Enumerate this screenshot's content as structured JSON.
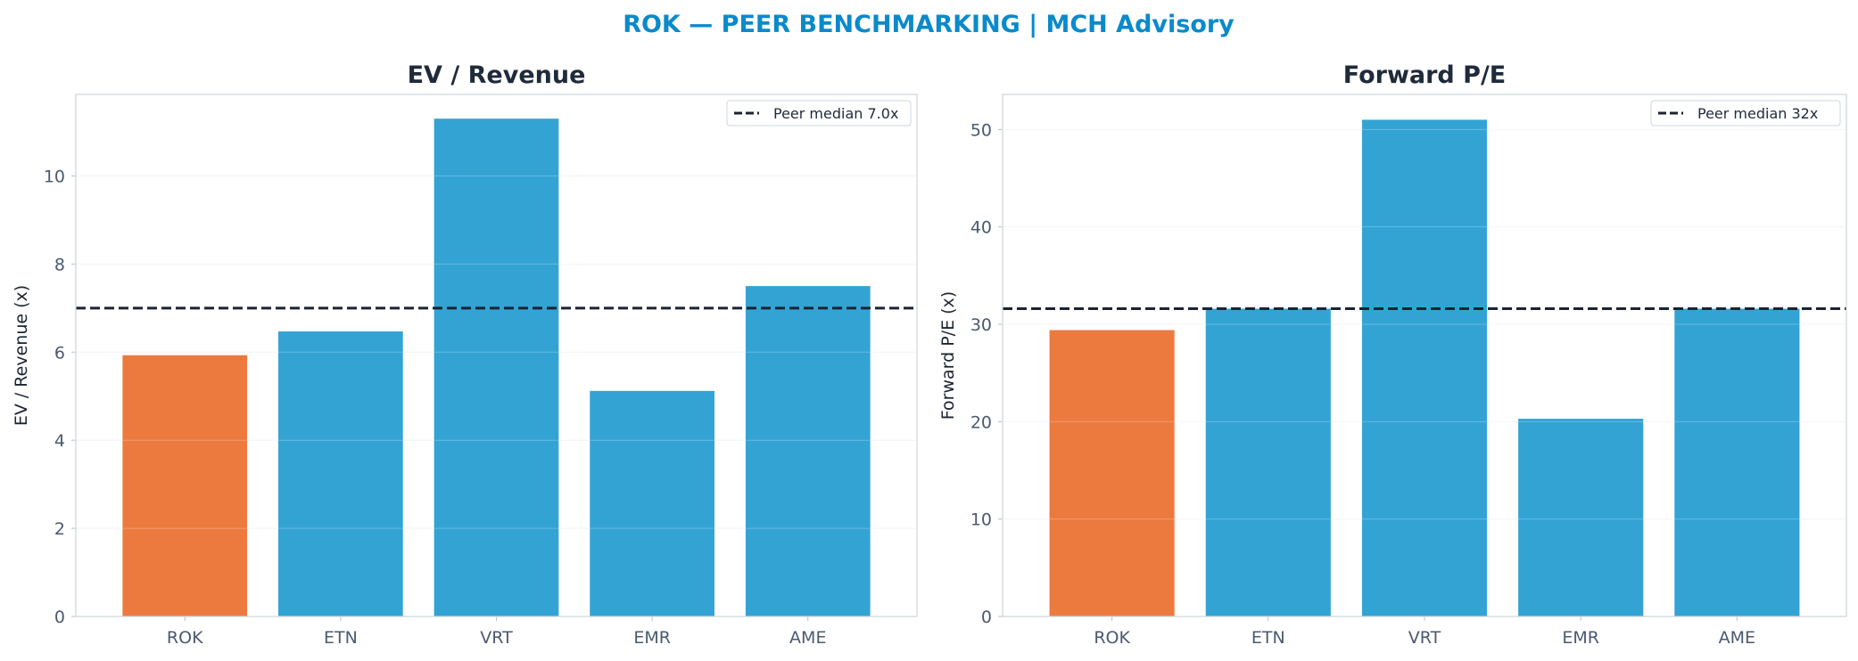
{
  "suptitle": "ROK — PEER BENCHMARKING | MCH Advisory",
  "colors": {
    "highlight": "#ec7a3f",
    "peer": "#33a3d4",
    "median_line": "#1b2333",
    "title": "#0a8acb"
  },
  "chart_data": [
    {
      "type": "bar",
      "title": "EV / Revenue",
      "xlabel": "",
      "ylabel": "EV / Revenue (x)",
      "categories": [
        "ROK",
        "ETN",
        "VRT",
        "EMR",
        "AME"
      ],
      "values": [
        5.93,
        6.47,
        11.3,
        5.12,
        7.5
      ],
      "bar_colors": [
        "highlight",
        "peer",
        "peer",
        "peer",
        "peer"
      ],
      "ylim": [
        0,
        11.85
      ],
      "yticks": [
        0,
        2,
        4,
        6,
        8,
        10
      ],
      "grid": true,
      "reference_line": {
        "value": 7.0,
        "style": "dashed",
        "label": "Peer median 7.0x"
      },
      "legend_position": "top-right"
    },
    {
      "type": "bar",
      "title": "Forward P/E",
      "xlabel": "",
      "ylabel": "Forward P/E (x)",
      "categories": [
        "ROK",
        "ETN",
        "VRT",
        "EMR",
        "AME"
      ],
      "values": [
        29.4,
        31.6,
        51.0,
        20.3,
        31.6
      ],
      "bar_colors": [
        "highlight",
        "peer",
        "peer",
        "peer",
        "peer"
      ],
      "ylim": [
        0,
        53.6
      ],
      "yticks": [
        0,
        10,
        20,
        30,
        40,
        50
      ],
      "grid": true,
      "reference_line": {
        "value": 31.6,
        "style": "dashed",
        "label": "Peer median 32x"
      },
      "legend_position": "top-right"
    }
  ]
}
